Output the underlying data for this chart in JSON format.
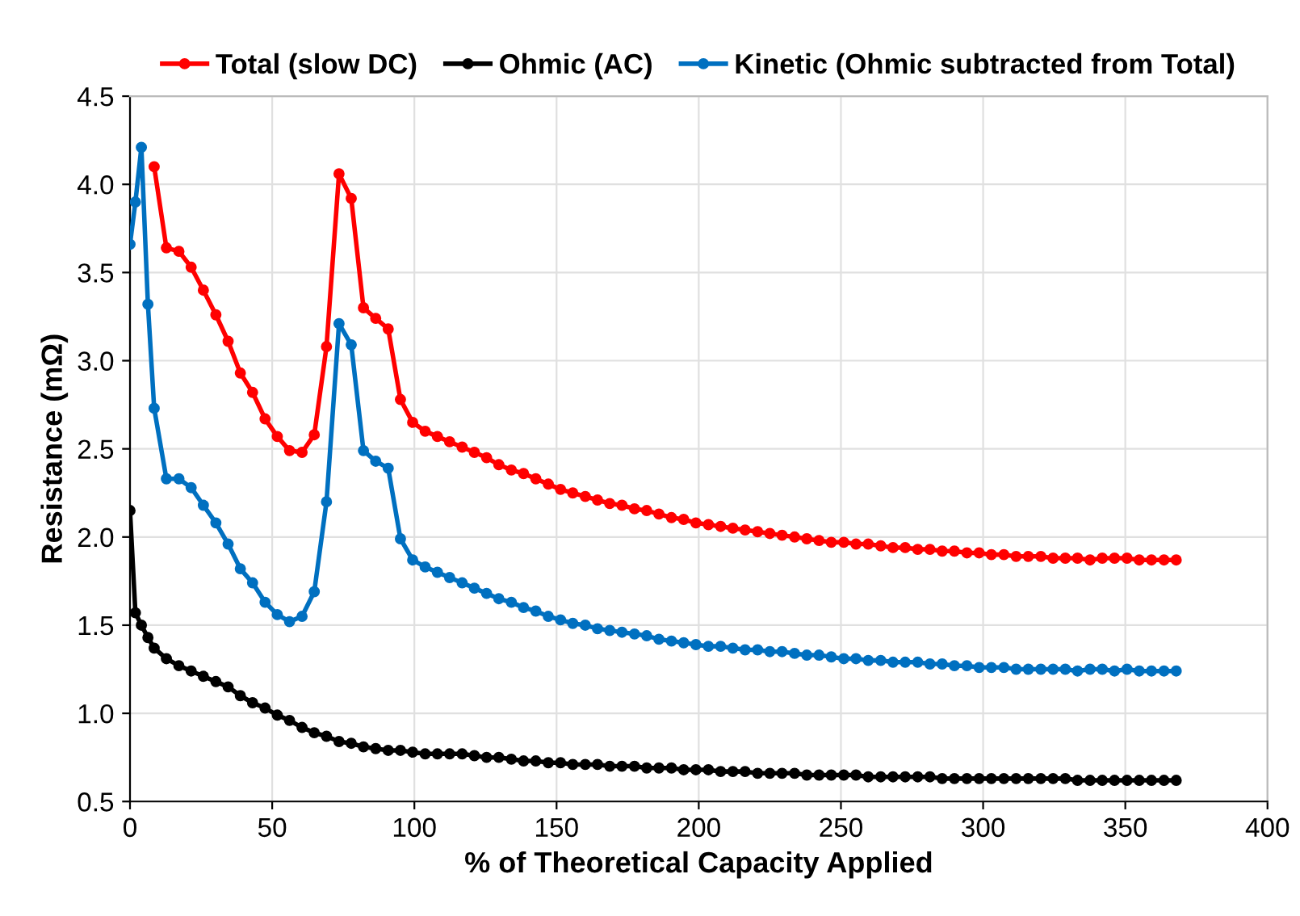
{
  "chart_data": {
    "type": "line",
    "xlabel": "% of Theoretical Capacity Applied",
    "ylabel": "Resistance (mΩ)",
    "xlim": [
      0,
      400
    ],
    "xticks": [
      0,
      50,
      100,
      150,
      200,
      250,
      300,
      350,
      400
    ],
    "ylim": [
      0.5,
      4.5
    ],
    "yticks": [
      {
        "value": 0.5,
        "label": "0.5"
      },
      {
        "value": 1.0,
        "label": "1.0"
      },
      {
        "value": 1.5,
        "label": "1.5"
      },
      {
        "value": 2.0,
        "label": "2.0"
      },
      {
        "value": 2.5,
        "label": "2.5"
      },
      {
        "value": 3.0,
        "label": "3.0"
      },
      {
        "value": 3.5,
        "label": "3.5"
      },
      {
        "value": 4.0,
        "label": "4.0"
      },
      {
        "value": 4.5,
        "label": "4.5"
      }
    ],
    "grid": true,
    "legend": "top",
    "marker": "circle",
    "line_style": "solid",
    "x": [
      0,
      1.9,
      4.0,
      6.3,
      8.5,
      12.8,
      17.2,
      21.5,
      25.8,
      30.2,
      34.5,
      38.8,
      43.1,
      47.5,
      51.8,
      56.1,
      60.5,
      64.8,
      69.1,
      73.5,
      77.8,
      82.1,
      86.4,
      90.8,
      95.1,
      99.4,
      103.8,
      108.1,
      112.4,
      116.8,
      121.1,
      125.4,
      129.7,
      134.1,
      138.4,
      142.7,
      147.1,
      151.4,
      155.7,
      160.1,
      164.4,
      168.7,
      173.0,
      177.4,
      181.7,
      186.0,
      190.4,
      194.7,
      199.0,
      203.4,
      207.7,
      212.0,
      216.3,
      220.7,
      225.0,
      229.3,
      233.7,
      238.0,
      242.3,
      246.6,
      251.0,
      255.3,
      259.6,
      264.0,
      268.3,
      272.6,
      277.0,
      281.3,
      285.6,
      289.9,
      294.3,
      298.6,
      302.9,
      307.3,
      311.6,
      315.9,
      320.3,
      324.6,
      328.9,
      333.2,
      337.6,
      341.9,
      346.2,
      350.6,
      354.9,
      359.2,
      363.6,
      367.9
    ],
    "series": [
      {
        "name": "Total (slow DC)",
        "color": "#ff0000",
        "x": [
          8.5,
          12.8,
          17.2,
          21.5,
          25.8,
          30.2,
          34.5,
          38.8,
          43.1,
          47.5,
          51.8,
          56.1,
          60.5,
          64.8,
          69.1,
          73.5,
          77.8,
          82.1,
          86.4,
          90.8,
          95.1,
          99.4,
          103.8,
          108.1,
          112.4,
          116.8,
          121.1,
          125.4,
          129.7,
          134.1,
          138.4,
          142.7,
          147.1,
          151.4,
          155.7,
          160.1,
          164.4,
          168.7,
          173.0,
          177.4,
          181.7,
          186.0,
          190.4,
          194.7,
          199.0,
          203.4,
          207.7,
          212.0,
          216.3,
          220.7,
          225.0,
          229.3,
          233.7,
          238.0,
          242.3,
          246.6,
          251.0,
          255.3,
          259.6,
          264.0,
          268.3,
          272.6,
          277.0,
          281.3,
          285.6,
          289.9,
          294.3,
          298.6,
          302.9,
          307.3,
          311.6,
          315.9,
          320.3,
          324.6,
          328.9,
          333.2,
          337.6,
          341.9,
          346.2,
          350.6,
          354.9,
          359.2,
          363.6,
          367.9
        ],
        "values": [
          4.1,
          3.64,
          3.62,
          3.53,
          3.4,
          3.26,
          3.11,
          2.93,
          2.82,
          2.67,
          2.57,
          2.49,
          2.48,
          2.58,
          3.08,
          4.06,
          3.92,
          3.3,
          3.24,
          3.18,
          2.78,
          2.65,
          2.6,
          2.57,
          2.54,
          2.51,
          2.48,
          2.45,
          2.41,
          2.38,
          2.36,
          2.33,
          2.3,
          2.27,
          2.25,
          2.23,
          2.21,
          2.19,
          2.18,
          2.16,
          2.15,
          2.13,
          2.11,
          2.1,
          2.08,
          2.07,
          2.06,
          2.05,
          2.04,
          2.03,
          2.02,
          2.01,
          2.0,
          1.99,
          1.98,
          1.97,
          1.97,
          1.96,
          1.96,
          1.95,
          1.94,
          1.94,
          1.93,
          1.93,
          1.92,
          1.92,
          1.91,
          1.91,
          1.9,
          1.9,
          1.89,
          1.89,
          1.89,
          1.88,
          1.88,
          1.88,
          1.87,
          1.88,
          1.88,
          1.88,
          1.87,
          1.87,
          1.87,
          1.87
        ]
      },
      {
        "name": "Ohmic (AC)",
        "color": "#000000",
        "values": [
          2.15,
          1.57,
          1.5,
          1.43,
          1.37,
          1.31,
          1.27,
          1.24,
          1.21,
          1.18,
          1.15,
          1.1,
          1.06,
          1.03,
          0.99,
          0.96,
          0.92,
          0.89,
          0.87,
          0.84,
          0.83,
          0.81,
          0.8,
          0.79,
          0.79,
          0.78,
          0.77,
          0.77,
          0.77,
          0.77,
          0.76,
          0.75,
          0.75,
          0.74,
          0.73,
          0.73,
          0.72,
          0.72,
          0.71,
          0.71,
          0.71,
          0.7,
          0.7,
          0.7,
          0.69,
          0.69,
          0.69,
          0.68,
          0.68,
          0.68,
          0.67,
          0.67,
          0.67,
          0.66,
          0.66,
          0.66,
          0.66,
          0.65,
          0.65,
          0.65,
          0.65,
          0.65,
          0.64,
          0.64,
          0.64,
          0.64,
          0.64,
          0.64,
          0.63,
          0.63,
          0.63,
          0.63,
          0.63,
          0.63,
          0.63,
          0.63,
          0.63,
          0.63,
          0.63,
          0.62,
          0.62,
          0.62,
          0.62,
          0.62,
          0.62,
          0.62,
          0.62,
          0.62
        ]
      },
      {
        "name": "Kinetic (Ohmic subtracted from Total)",
        "color": "#0070c0",
        "values": [
          3.66,
          3.9,
          4.21,
          3.32,
          2.73,
          2.33,
          2.33,
          2.28,
          2.18,
          2.08,
          1.96,
          1.82,
          1.74,
          1.63,
          1.56,
          1.52,
          1.55,
          1.69,
          2.2,
          3.21,
          3.09,
          2.49,
          2.43,
          2.39,
          1.99,
          1.87,
          1.83,
          1.8,
          1.77,
          1.74,
          1.71,
          1.68,
          1.65,
          1.63,
          1.6,
          1.58,
          1.55,
          1.53,
          1.51,
          1.5,
          1.48,
          1.47,
          1.46,
          1.45,
          1.44,
          1.42,
          1.41,
          1.4,
          1.39,
          1.38,
          1.38,
          1.37,
          1.36,
          1.36,
          1.35,
          1.35,
          1.34,
          1.33,
          1.33,
          1.32,
          1.31,
          1.31,
          1.3,
          1.3,
          1.29,
          1.29,
          1.29,
          1.28,
          1.28,
          1.27,
          1.27,
          1.26,
          1.26,
          1.26,
          1.25,
          1.25,
          1.25,
          1.25,
          1.25,
          1.24,
          1.25,
          1.25,
          1.24,
          1.25,
          1.24,
          1.24,
          1.24,
          1.24
        ]
      }
    ]
  }
}
